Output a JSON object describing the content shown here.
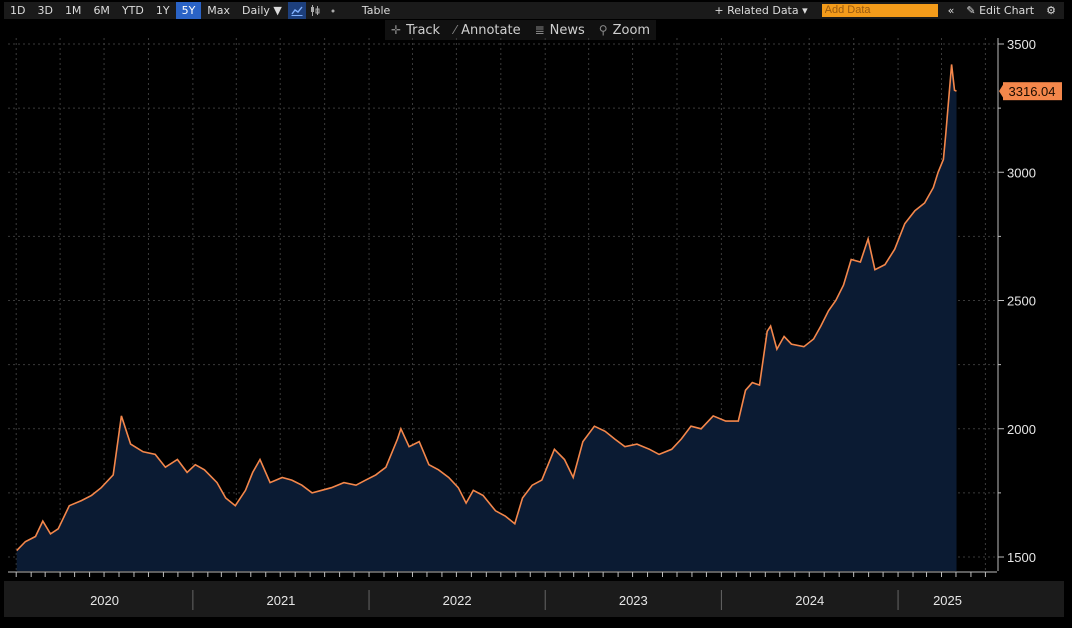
{
  "toolbar": {
    "ranges": [
      "1D",
      "3D",
      "1M",
      "6M",
      "YTD",
      "1Y",
      "5Y",
      "Max"
    ],
    "active_range": "5Y",
    "frequency": "Daily ▼",
    "table_label": "Table",
    "related_data": "+ Related Data ▾",
    "add_data_placeholder": "Add Data",
    "collapse_glyph": "«",
    "edit_chart": "✎ Edit Chart",
    "settings_glyph": "⚙"
  },
  "subbar": {
    "track": "Track",
    "annotate": "Annotate",
    "news": "News",
    "zoom": "Zoom"
  },
  "colors": {
    "line": "#f4874b",
    "fill": "#0b1b33",
    "last_value_bg": "#f4874b"
  },
  "chart_data": {
    "type": "area",
    "title": "",
    "xlabel": "",
    "ylabel": "",
    "ylim": [
      1500,
      3500
    ],
    "yticks": [
      1500,
      2000,
      2500,
      3000,
      3500
    ],
    "xticks": [
      "2020",
      "2021",
      "2022",
      "2023",
      "2024",
      "2025"
    ],
    "last_value_label": "3316.04",
    "grid": true,
    "x": [
      "2020-01-02",
      "2020-01-20",
      "2020-02-10",
      "2020-02-25",
      "2020-03-12",
      "2020-03-28",
      "2020-04-20",
      "2020-05-15",
      "2020-06-05",
      "2020-06-25",
      "2020-07-20",
      "2020-08-06",
      "2020-08-25",
      "2020-09-20",
      "2020-10-15",
      "2020-11-05",
      "2020-11-30",
      "2020-12-20",
      "2021-01-06",
      "2021-01-25",
      "2021-02-20",
      "2021-03-10",
      "2021-03-30",
      "2021-04-20",
      "2021-05-05",
      "2021-05-20",
      "2021-06-10",
      "2021-07-05",
      "2021-07-25",
      "2021-08-15",
      "2021-09-05",
      "2021-09-25",
      "2021-10-15",
      "2021-11-10",
      "2021-12-05",
      "2021-12-25",
      "2022-01-15",
      "2022-02-05",
      "2022-03-01",
      "2022-03-08",
      "2022-03-25",
      "2022-04-15",
      "2022-05-05",
      "2022-05-25",
      "2022-06-15",
      "2022-07-05",
      "2022-07-21",
      "2022-08-05",
      "2022-08-25",
      "2022-09-20",
      "2022-10-10",
      "2022-10-30",
      "2022-11-15",
      "2022-12-05",
      "2022-12-25",
      "2023-01-20",
      "2023-02-10",
      "2023-02-28",
      "2023-03-20",
      "2023-04-13",
      "2023-05-05",
      "2023-05-25",
      "2023-06-15",
      "2023-07-10",
      "2023-08-05",
      "2023-08-25",
      "2023-09-20",
      "2023-10-10",
      "2023-10-30",
      "2023-11-20",
      "2023-12-15",
      "2024-01-10",
      "2024-02-05",
      "2024-02-20",
      "2024-03-05",
      "2024-03-20",
      "2024-04-05",
      "2024-04-12",
      "2024-04-25",
      "2024-05-10",
      "2024-05-25",
      "2024-06-20",
      "2024-07-10",
      "2024-07-25",
      "2024-08-10",
      "2024-08-25",
      "2024-09-10",
      "2024-09-26",
      "2024-10-15",
      "2024-10-31",
      "2024-11-14",
      "2024-12-05",
      "2024-12-25",
      "2025-01-15",
      "2025-02-05",
      "2025-02-25",
      "2025-03-15",
      "2025-03-25",
      "2025-04-05",
      "2025-04-10",
      "2025-04-22",
      "2025-04-28",
      "2025-05-02"
    ],
    "series": [
      {
        "values": [
          1525,
          1560,
          1580,
          1640,
          1590,
          1610,
          1700,
          1720,
          1740,
          1770,
          1820,
          2050,
          1940,
          1910,
          1900,
          1850,
          1880,
          1830,
          1860,
          1840,
          1790,
          1730,
          1700,
          1760,
          1830,
          1880,
          1790,
          1810,
          1800,
          1780,
          1750,
          1760,
          1770,
          1790,
          1780,
          1800,
          1820,
          1850,
          1960,
          2000,
          1930,
          1950,
          1860,
          1840,
          1810,
          1770,
          1710,
          1760,
          1740,
          1680,
          1660,
          1630,
          1730,
          1780,
          1800,
          1920,
          1880,
          1810,
          1950,
          2010,
          1990,
          1960,
          1930,
          1940,
          1920,
          1900,
          1920,
          1960,
          2010,
          2000,
          2050,
          2030,
          2030,
          2150,
          2180,
          2170,
          2380,
          2400,
          2310,
          2360,
          2330,
          2320,
          2350,
          2400,
          2460,
          2500,
          2560,
          2660,
          2650,
          2740,
          2620,
          2640,
          2700,
          2800,
          2850,
          2880,
          2940,
          3000,
          3050,
          3150,
          3420,
          3320,
          3316
        ]
      }
    ]
  }
}
